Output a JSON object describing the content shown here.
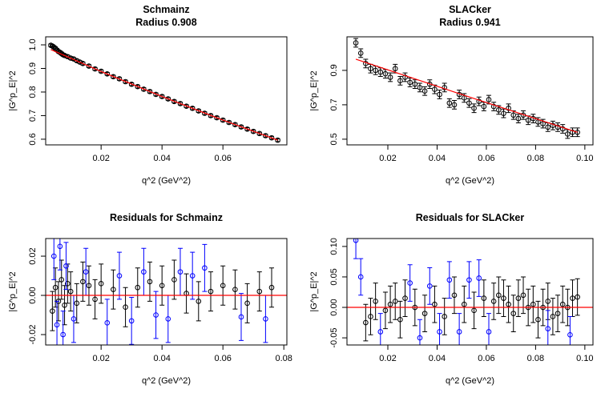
{
  "chart_data": [
    {
      "type": "scatter",
      "title": "Schmainz",
      "subtitle": "Radius 0.908",
      "x_label": "q^2 (GeV^2)",
      "y_label": "|G^p_E|^2",
      "xlim": [
        0.0018,
        0.081
      ],
      "ylim": [
        0.576,
        1.034
      ],
      "xticks": [
        0.02,
        0.04,
        0.06
      ],
      "yticks": [
        0.6,
        0.7,
        0.8,
        0.9,
        {
          "value": 1,
          "label": "1.0"
        }
      ],
      "series": [
        {
          "style": "points",
          "color": "#000000",
          "error": 0.006,
          "x": [
            0.0035,
            0.004,
            0.0045,
            0.005,
            0.0055,
            0.006,
            0.0065,
            0.007,
            0.0075,
            0.008,
            0.009,
            0.01,
            0.011,
            0.012,
            0.013,
            0.014,
            0.016,
            0.018,
            0.02,
            0.022,
            0.024,
            0.026,
            0.028,
            0.03,
            0.032,
            0.034,
            0.036,
            0.038,
            0.04,
            0.042,
            0.044,
            0.046,
            0.048,
            0.05,
            0.052,
            0.054,
            0.056,
            0.058,
            0.06,
            0.062,
            0.064,
            0.066,
            0.068,
            0.07,
            0.072,
            0.074,
            0.076,
            0.078
          ],
          "values": [
            0.998,
            0.995,
            0.99,
            0.985,
            0.978,
            0.972,
            0.968,
            0.963,
            0.958,
            0.955,
            0.95,
            0.944,
            0.94,
            0.933,
            0.927,
            0.921,
            0.91,
            0.898,
            0.888,
            0.877,
            0.865,
            0.856,
            0.844,
            0.833,
            0.823,
            0.812,
            0.802,
            0.79,
            0.781,
            0.771,
            0.76,
            0.751,
            0.74,
            0.731,
            0.72,
            0.71,
            0.7,
            0.691,
            0.681,
            0.671,
            0.662,
            0.652,
            0.643,
            0.633,
            0.624,
            0.615,
            0.606,
            0.596
          ]
        },
        {
          "style": "line",
          "color": "#ff0000",
          "x": [
            0.0035,
            0.02,
            0.04,
            0.06,
            0.078
          ],
          "values": [
            0.98,
            0.887,
            0.781,
            0.681,
            0.596
          ]
        }
      ]
    },
    {
      "type": "scatter",
      "title": "SLACker",
      "subtitle": "Radius 0.941",
      "x_label": "q^2 (GeV^2)",
      "y_label": "|G^p_E|^2",
      "xlim": [
        0.0034,
        0.1033
      ],
      "ylim": [
        0.467,
        1.095
      ],
      "xticks": [
        0.02,
        0.04,
        0.06,
        0.08,
        {
          "value": 0.1,
          "label": "0.10"
        }
      ],
      "yticks": [
        0.5,
        0.7,
        0.9
      ],
      "series": [
        {
          "style": "points",
          "color": "#000000",
          "error": 0.025,
          "x": [
            0.007,
            0.009,
            0.011,
            0.013,
            0.015,
            0.017,
            0.019,
            0.021,
            0.023,
            0.025,
            0.027,
            0.029,
            0.031,
            0.033,
            0.035,
            0.037,
            0.039,
            0.041,
            0.043,
            0.045,
            0.047,
            0.049,
            0.051,
            0.053,
            0.055,
            0.057,
            0.059,
            0.061,
            0.063,
            0.065,
            0.067,
            0.069,
            0.071,
            0.073,
            0.075,
            0.077,
            0.079,
            0.081,
            0.083,
            0.085,
            0.087,
            0.089,
            0.091,
            0.093,
            0.095,
            0.097
          ],
          "values": [
            1.06,
            1.0,
            0.94,
            0.91,
            0.9,
            0.89,
            0.88,
            0.86,
            0.91,
            0.84,
            0.86,
            0.83,
            0.82,
            0.8,
            0.78,
            0.82,
            0.79,
            0.76,
            0.8,
            0.71,
            0.7,
            0.76,
            0.74,
            0.71,
            0.68,
            0.72,
            0.69,
            0.73,
            0.69,
            0.67,
            0.65,
            0.68,
            0.64,
            0.62,
            0.64,
            0.61,
            0.62,
            0.6,
            0.59,
            0.57,
            0.58,
            0.57,
            0.56,
            0.53,
            0.54,
            0.54
          ]
        },
        {
          "style": "line",
          "color": "#ff0000",
          "x": [
            0.007,
            0.05,
            0.097
          ],
          "values": [
            0.965,
            0.76,
            0.54
          ]
        }
      ]
    },
    {
      "type": "scatter",
      "title": "Residuals for Schmainz",
      "x_label": "q^2 (GeV^2)",
      "y_label": "|G^p_E|^2",
      "xlim": [
        0.0018,
        0.081
      ],
      "ylim": [
        -0.0253,
        0.029
      ],
      "xticks": [
        0.02,
        0.04,
        0.06,
        0.08
      ],
      "yticks": [
        -0.02,
        {
          "value": 0,
          "label": "0.00"
        },
        0.02
      ],
      "hline": 0,
      "hline_color": "#ff0000",
      "series": [
        {
          "style": "points",
          "color": "#000000",
          "error": 0.01,
          "x": [
            0.004,
            0.005,
            0.006,
            0.007,
            0.008,
            0.009,
            0.01,
            0.012,
            0.014,
            0.016,
            0.018,
            0.02,
            0.024,
            0.028,
            0.032,
            0.036,
            0.04,
            0.044,
            0.048,
            0.052,
            0.056,
            0.06,
            0.064,
            0.068,
            0.072,
            0.076
          ],
          "values": [
            -0.008,
            0.004,
            -0.003,
            0.008,
            -0.005,
            0.006,
            0.002,
            -0.004,
            0.007,
            0.005,
            -0.002,
            0.006,
            0.003,
            -0.006,
            0.004,
            0.007,
            0.005,
            0.008,
            0.001,
            -0.003,
            0.002,
            0.005,
            0.003,
            -0.004,
            0.002,
            0.004
          ]
        },
        {
          "style": "points",
          "color": "#0000ff",
          "error": 0.012,
          "x": [
            0.0045,
            0.0055,
            0.0065,
            0.0075,
            0.0085,
            0.011,
            0.015,
            0.022,
            0.026,
            0.03,
            0.034,
            0.038,
            0.042,
            0.046,
            0.05,
            0.054,
            0.066,
            0.074
          ],
          "values": [
            0.02,
            -0.015,
            0.025,
            -0.02,
            0.015,
            -0.012,
            0.012,
            -0.014,
            0.01,
            -0.013,
            0.012,
            -0.01,
            -0.012,
            0.012,
            0.01,
            0.014,
            -0.011,
            -0.012
          ]
        }
      ]
    },
    {
      "type": "scatter",
      "title": "Residuals for SLACker",
      "x_label": "q^2 (GeV^2)",
      "y_label": "|G^p_E|^2",
      "xlim": [
        0.0034,
        0.1033
      ],
      "ylim": [
        -0.0617,
        0.113
      ],
      "xticks": [
        0.02,
        0.04,
        0.06,
        0.08,
        {
          "value": 0.1,
          "label": "0.10"
        }
      ],
      "yticks": [
        -0.05,
        {
          "value": 0,
          "label": "0.00"
        },
        0.05,
        {
          "value": 0.1,
          "label": "0.10"
        }
      ],
      "hline": 0,
      "hline_color": "#ff0000",
      "series": [
        {
          "style": "points",
          "color": "#000000",
          "error": 0.03,
          "x": [
            0.011,
            0.013,
            0.015,
            0.019,
            0.021,
            0.023,
            0.025,
            0.027,
            0.031,
            0.035,
            0.039,
            0.043,
            0.047,
            0.051,
            0.055,
            0.059,
            0.063,
            0.065,
            0.067,
            0.069,
            0.071,
            0.073,
            0.075,
            0.077,
            0.079,
            0.081,
            0.083,
            0.085,
            0.087,
            0.089,
            0.091,
            0.093,
            0.095,
            0.097
          ],
          "values": [
            -0.025,
            -0.015,
            0.01,
            -0.005,
            0.005,
            0.01,
            -0.02,
            0.015,
            0,
            -0.01,
            0.005,
            -0.015,
            0.02,
            0.005,
            -0.005,
            0.015,
            0.01,
            0.02,
            0.015,
            0.005,
            -0.01,
            0.015,
            0.02,
            0,
            0.005,
            -0.02,
            0,
            0.01,
            -0.015,
            -0.01,
            0.005,
            0,
            0.015,
            0.017
          ]
        },
        {
          "style": "points",
          "color": "#0000ff",
          "error": 0.03,
          "x": [
            0.007,
            0.009,
            0.017,
            0.029,
            0.033,
            0.037,
            0.041,
            0.045,
            0.049,
            0.053,
            0.057,
            0.061,
            0.085,
            0.094
          ],
          "values": [
            0.11,
            0.05,
            -0.04,
            0.04,
            -0.05,
            0.035,
            -0.04,
            0.045,
            -0.04,
            0.045,
            0.048,
            -0.04,
            -0.035,
            -0.045
          ]
        }
      ]
    }
  ]
}
